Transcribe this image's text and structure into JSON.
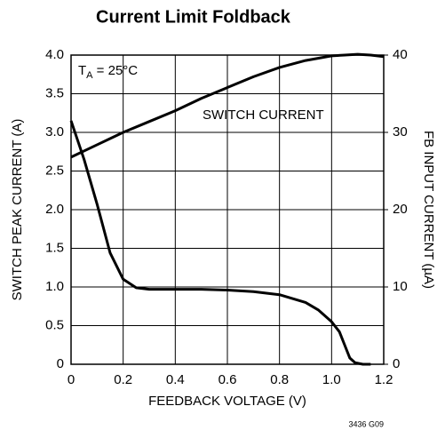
{
  "chart_data": {
    "type": "line",
    "title": "Current Limit Foldback",
    "xlabel": "FEEDBACK VOLTAGE (V)",
    "ylabel": "SWITCH PEAK CURRENT (A)",
    "y2label": "FB INPUT CURRENT (µA)",
    "annotation_parts": [
      "T",
      "A",
      " = 25°C"
    ],
    "footnote": "3436 G09",
    "xlim": [
      0,
      1.2
    ],
    "xticks": [
      0,
      0.2,
      0.4,
      0.6,
      0.8,
      {
        "value": 1.0,
        "label": "1.0"
      },
      1.2
    ],
    "ylim": [
      0,
      4.0
    ],
    "yticks": [
      0,
      0.5,
      {
        "value": 1.0,
        "label": "1.0"
      },
      1.5,
      {
        "value": 2.0,
        "label": "2.0"
      },
      2.5,
      {
        "value": 3.0,
        "label": "3.0"
      },
      3.5,
      {
        "value": 4.0,
        "label": "4.0"
      }
    ],
    "y2lim": [
      0,
      40
    ],
    "y2ticks": [
      0,
      10,
      20,
      30,
      40
    ],
    "grid": true,
    "series": [
      {
        "name": "SWITCH CURRENT",
        "color": "#000000",
        "x": [
          0,
          0.1,
          0.2,
          0.3,
          0.4,
          0.5,
          0.6,
          0.7,
          0.8,
          0.9,
          1.0,
          1.05,
          1.1,
          1.15,
          1.2
        ],
        "values": [
          2.68,
          2.84,
          3.0,
          3.14,
          3.28,
          3.44,
          3.58,
          3.72,
          3.84,
          3.93,
          3.99,
          4.0,
          4.01,
          4.0,
          3.98
        ]
      },
      {
        "color": "#000000",
        "axis": "y2",
        "x": [
          0,
          0.05,
          0.1,
          0.15,
          0.2,
          0.25,
          0.3,
          0.4,
          0.5,
          0.6,
          0.7,
          0.8,
          0.9,
          0.95,
          1.0,
          1.03,
          1.05,
          1.07,
          1.09,
          1.12,
          1.15
        ],
        "values": [
          31.5,
          26.5,
          20.7,
          14.4,
          11.0,
          9.9,
          9.7,
          9.7,
          9.7,
          9.6,
          9.4,
          9.0,
          8.0,
          7.0,
          5.5,
          4.2,
          2.5,
          0.8,
          0.2,
          0,
          0
        ]
      }
    ]
  }
}
